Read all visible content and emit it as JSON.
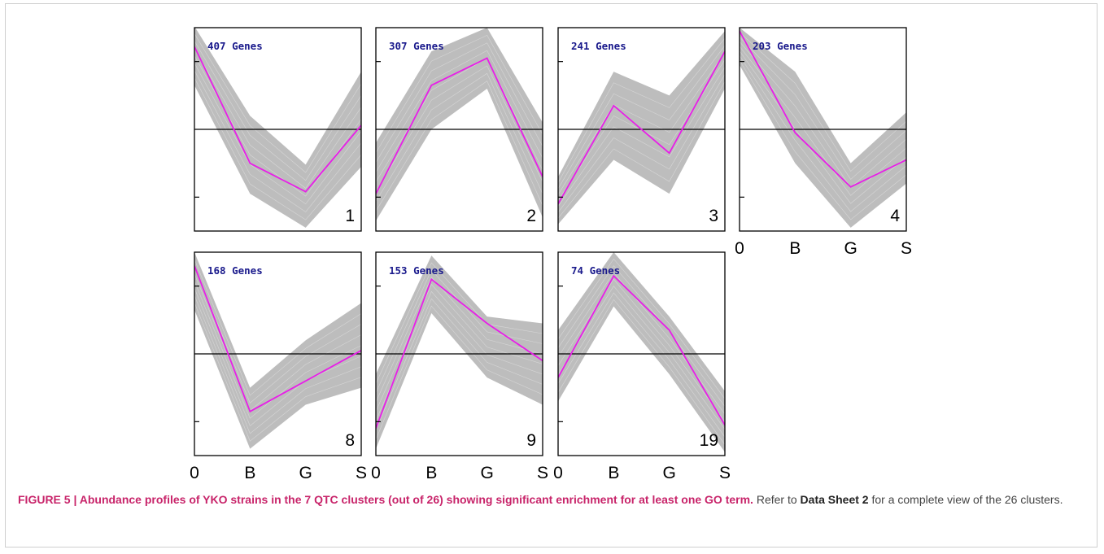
{
  "chart_data": {
    "type": "line",
    "x": [
      "0",
      "B",
      "G",
      "S"
    ],
    "ylim": [
      -1.5,
      1.5
    ],
    "colors": {
      "envelope": "#bdbdbd",
      "mean": "#e81ee8",
      "zero": "#000000",
      "count": "#1a1a8c"
    },
    "panels": [
      {
        "cluster": "1",
        "genes": "407 Genes",
        "mean": [
          1.22,
          -0.5,
          -0.92,
          0.06
        ],
        "upper": [
          1.52,
          0.2,
          -0.52,
          0.85
        ],
        "lower": [
          0.65,
          -0.95,
          -1.45,
          -0.55
        ]
      },
      {
        "cluster": "2",
        "genes": "307 Genes",
        "mean": [
          -0.95,
          0.65,
          1.05,
          -0.7
        ],
        "upper": [
          -0.2,
          1.15,
          1.5,
          0.1
        ],
        "lower": [
          -1.35,
          0.0,
          0.6,
          -1.3
        ]
      },
      {
        "cluster": "3",
        "genes": "241 Genes",
        "mean": [
          -1.1,
          0.35,
          -0.35,
          1.15
        ],
        "upper": [
          -0.7,
          0.85,
          0.5,
          1.45
        ],
        "lower": [
          -1.4,
          -0.45,
          -0.95,
          0.6
        ]
      },
      {
        "cluster": "4",
        "genes": "203 Genes",
        "mean": [
          1.45,
          -0.05,
          -0.85,
          -0.45
        ],
        "upper": [
          1.5,
          0.85,
          -0.5,
          0.25
        ],
        "lower": [
          0.95,
          -0.5,
          -1.45,
          -0.8
        ]
      },
      {
        "cluster": "8",
        "genes": "168 Genes",
        "mean": [
          1.3,
          -0.85,
          -0.4,
          0.05
        ],
        "upper": [
          1.5,
          -0.5,
          0.2,
          0.75
        ],
        "lower": [
          0.65,
          -1.4,
          -0.75,
          -0.5
        ]
      },
      {
        "cluster": "9",
        "genes": "153 Genes",
        "mean": [
          -1.1,
          1.1,
          0.45,
          -0.1
        ],
        "upper": [
          -0.3,
          1.45,
          0.55,
          0.45
        ],
        "lower": [
          -1.4,
          0.6,
          -0.35,
          -0.75
        ]
      },
      {
        "cluster": "19",
        "genes": "74 Genes",
        "mean": [
          -0.35,
          1.15,
          0.35,
          -1.05
        ],
        "upper": [
          0.35,
          1.5,
          0.55,
          -0.55
        ],
        "lower": [
          -0.7,
          0.7,
          -0.3,
          -1.45
        ]
      }
    ]
  },
  "caption": {
    "title": "FIGURE 5 | Abundance profiles of YKO strains in the 7 QTC clusters (out of 26) showing significant enrichment for at least one GO term.",
    "text_a": " Refer to ",
    "ref": "Data Sheet 2",
    "text_b": " for a complete view of the 26 clusters."
  }
}
